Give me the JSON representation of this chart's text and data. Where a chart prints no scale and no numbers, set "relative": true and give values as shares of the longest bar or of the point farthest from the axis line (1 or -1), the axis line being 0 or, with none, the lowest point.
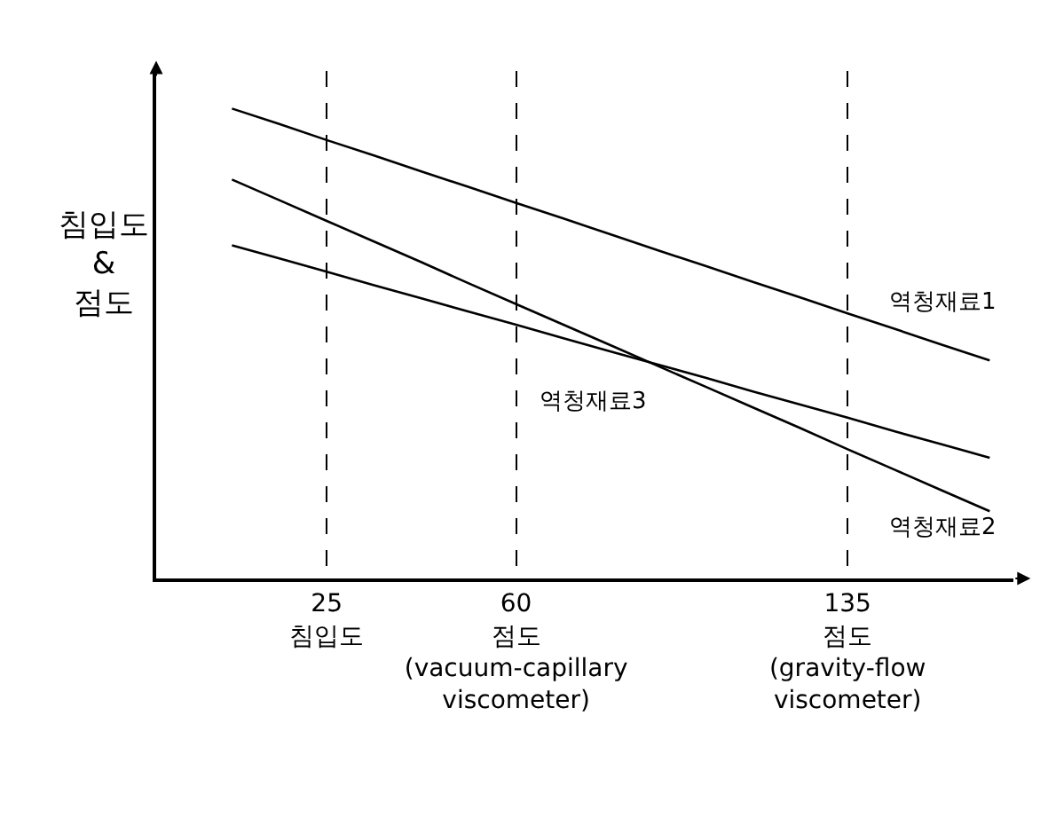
{
  "chart_data": {
    "type": "line",
    "relative": true,
    "ylabel": "침입도\n&\n점도",
    "categories": [
      null,
      null,
      "25\n침입도",
      null,
      null,
      null,
      "60\n점도\n(vacuum-capillary\nviscometer)",
      null,
      null,
      null,
      null,
      null,
      null,
      "135\n점도\n(gravity-flow\nviscometer)",
      null,
      null,
      null
    ],
    "grid": "x",
    "line_style": "solid",
    "marker": "none",
    "legend": false,
    "series": [
      {
        "name": "역청재료1",
        "color": "#000000",
        "values": [
          1.0,
          0.967,
          0.933,
          0.9,
          0.866,
          0.833,
          0.799,
          0.766,
          0.732,
          0.698,
          0.665,
          0.631,
          0.598,
          0.564,
          0.531,
          0.497,
          0.464
        ]
      },
      {
        "name": "역청재료2",
        "color": "#000000",
        "values": [
          0.849,
          0.805,
          0.761,
          0.717,
          0.673,
          0.628,
          0.584,
          0.54,
          0.496,
          0.452,
          0.408,
          0.364,
          0.32,
          0.275,
          0.231,
          0.187,
          0.143
        ]
      },
      {
        "name": "역청재료3",
        "color": "#000000",
        "values": [
          0.709,
          0.681,
          0.653,
          0.624,
          0.596,
          0.568,
          0.54,
          0.511,
          0.483,
          0.455,
          0.427,
          0.398,
          0.37,
          0.342,
          0.313,
          0.285,
          0.257
        ]
      }
    ]
  }
}
